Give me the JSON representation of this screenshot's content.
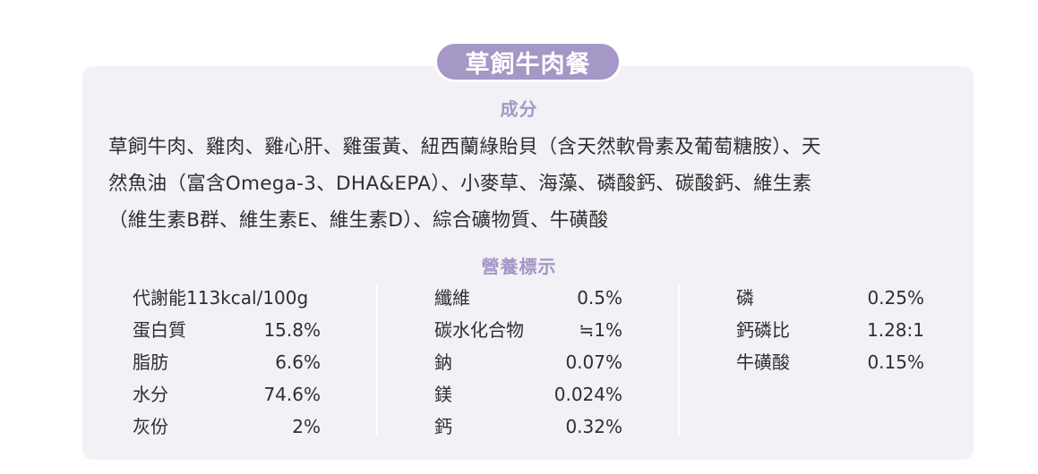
{
  "product_title": "草飼牛肉餐",
  "ingredients": {
    "heading": "成分",
    "lines": [
      "草飼牛肉、雞肉、雞心肝、雞蛋黃、紐西蘭綠貽貝（含天然軟骨素及葡萄糖胺）、天",
      "然魚油（富含Omega-3、DHA&EPA）、小麥草、海藻、磷酸鈣、碳酸鈣、維生素",
      "（維生素B群、維生素E、維生素D）、綜合礦物質、牛磺酸"
    ]
  },
  "nutrition": {
    "heading": "營養標示",
    "columns": [
      [
        {
          "label": "代謝能113kcal/100g",
          "value": ""
        },
        {
          "label": "蛋白質",
          "value": "15.8%"
        },
        {
          "label": "脂肪",
          "value": "6.6%"
        },
        {
          "label": "水分",
          "value": "74.6%"
        },
        {
          "label": "灰份",
          "value": "2%"
        }
      ],
      [
        {
          "label": "纖維",
          "value": "0.5%"
        },
        {
          "label": "碳水化合物",
          "value": "≒1%"
        },
        {
          "label": "鈉",
          "value": "0.07%"
        },
        {
          "label": "鎂",
          "value": "0.024%"
        },
        {
          "label": "鈣",
          "value": "0.32%"
        }
      ],
      [
        {
          "label": "磷",
          "value": "0.25%"
        },
        {
          "label": "鈣磷比",
          "value": "1.28:1"
        },
        {
          "label": "牛磺酸",
          "value": "0.15%"
        }
      ]
    ]
  },
  "colors": {
    "accent": "#a597c6",
    "card_bg": "#f2f1f6",
    "text": "#2f2f2f"
  }
}
